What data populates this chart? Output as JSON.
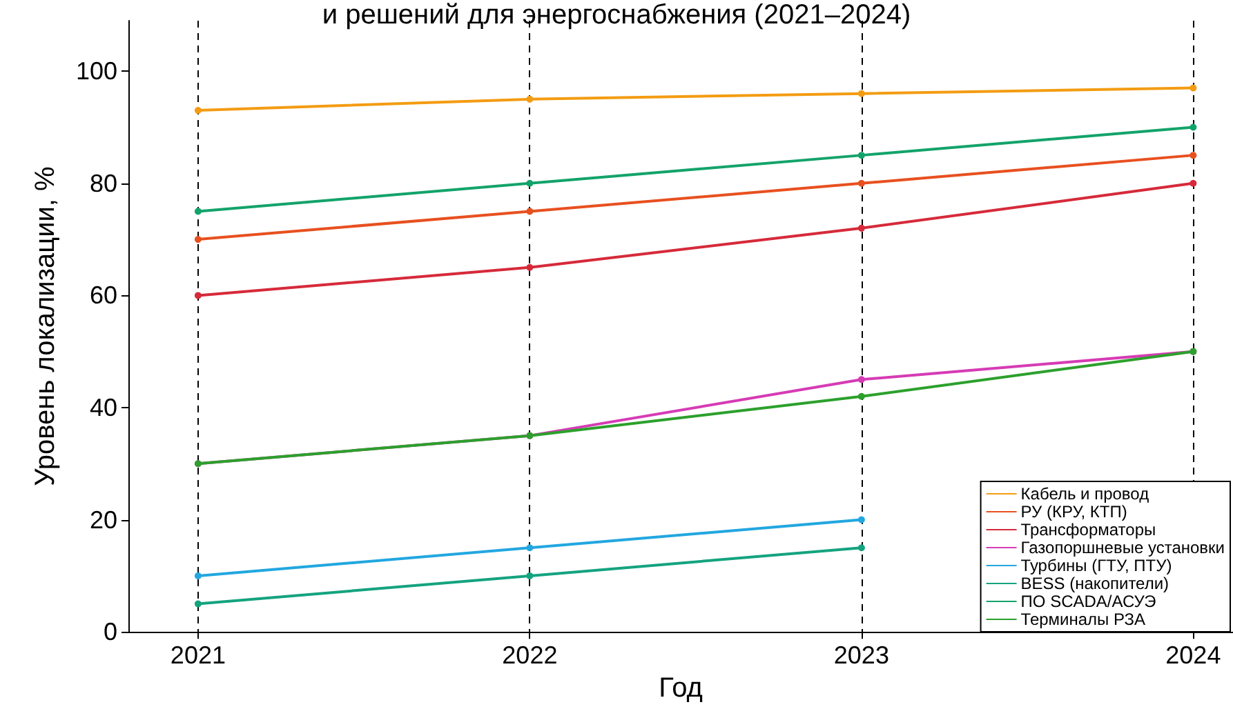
{
  "chart_data": {
    "type": "line",
    "title": "и решений для энергоснабжения (2021–2024)",
    "xlabel": "Год",
    "ylabel": "Уровень локализации, %",
    "x": [
      2021,
      2022,
      2023,
      2024
    ],
    "xlim": [
      2020.79,
      2024.12
    ],
    "xticks": [
      2021,
      2022,
      2023,
      2024
    ],
    "ylim": [
      0,
      109
    ],
    "yticks": [
      0,
      20,
      40,
      60,
      80,
      100
    ],
    "grid": "x",
    "legend": "bottom right",
    "marker": "circle",
    "line_style": "solid",
    "series": [
      {
        "name": "Кабель и провод",
        "color": "#f39c12",
        "values": [
          93,
          95,
          96,
          97
        ]
      },
      {
        "name": "РУ (КРУ, КТП)",
        "color": "#e8501f",
        "values": [
          70,
          75,
          80,
          85
        ]
      },
      {
        "name": "Трансформаторы",
        "color": "#d62a3a",
        "values": [
          60,
          65,
          72,
          80
        ]
      },
      {
        "name": "Газопоршневые установки",
        "color": "#d63bb5",
        "values": [
          30,
          35,
          45,
          50
        ]
      },
      {
        "name": "Турбины (ГТУ, ПТУ)",
        "color": "#22a7e0",
        "values": [
          10,
          15,
          20,
          null
        ]
      },
      {
        "name": "BESS (накопители)",
        "color": "#14a37f",
        "values": [
          5,
          10,
          15,
          null
        ]
      },
      {
        "name": "ПО SCADA/АСУЭ",
        "color": "#13a36a",
        "values": [
          75,
          80,
          85,
          90
        ]
      },
      {
        "name": "Терминалы РЗА",
        "color": "#2ca02c",
        "values": [
          30,
          35,
          42,
          50
        ]
      }
    ]
  }
}
